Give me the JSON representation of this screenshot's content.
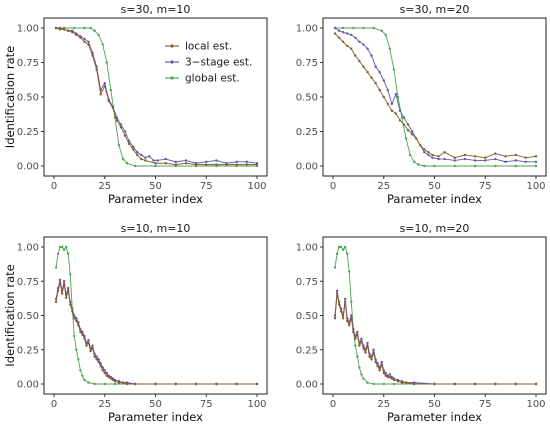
{
  "figure": {
    "xlabel": "Parameter index",
    "ylabel": "Identification rate"
  },
  "legend": {
    "placement": "top-right of first panel",
    "entries": [
      {
        "label": "local est.",
        "color": "#8B5A2B"
      },
      {
        "label": "3−stage est.",
        "color": "#5A5AA8"
      },
      {
        "label": "global est.",
        "color": "#4CA64C"
      }
    ]
  },
  "chart_data": [
    {
      "type": "line",
      "title": "s=30, m=10",
      "xlim": [
        0,
        100
      ],
      "ylim": [
        0,
        1
      ],
      "xticks": [
        "0",
        "25",
        "50",
        "75",
        "100"
      ],
      "yticks": [
        "0.00",
        "0.25",
        "0.50",
        "0.75",
        "1.00"
      ],
      "series": [
        {
          "name": "global est.",
          "color": "#4CA64C",
          "x": [
            1,
            5,
            10,
            15,
            18,
            20,
            22,
            24,
            26,
            28,
            30,
            32,
            34,
            36,
            40,
            50,
            60,
            70,
            80,
            90,
            100
          ],
          "y": [
            1,
            1,
            1,
            1,
            1,
            0.98,
            0.95,
            0.88,
            0.75,
            0.55,
            0.35,
            0.15,
            0.05,
            0.02,
            0,
            0,
            0,
            0,
            0,
            0,
            0
          ]
        },
        {
          "name": "3−stage est.",
          "color": "#5A5AA8",
          "x": [
            1,
            3,
            5,
            7,
            9,
            11,
            13,
            15,
            17,
            19,
            21,
            23,
            25,
            27,
            29,
            31,
            33,
            35,
            37,
            39,
            41,
            43,
            45,
            47,
            49,
            51,
            55,
            60,
            65,
            70,
            75,
            80,
            85,
            90,
            95,
            100
          ],
          "y": [
            1,
            1,
            0.99,
            0.98,
            0.98,
            0.96,
            0.94,
            0.92,
            0.9,
            0.82,
            0.72,
            0.55,
            0.6,
            0.48,
            0.43,
            0.35,
            0.3,
            0.25,
            0.18,
            0.14,
            0.1,
            0.08,
            0.06,
            0.07,
            0.04,
            0.04,
            0.05,
            0.03,
            0.04,
            0.02,
            0.03,
            0.04,
            0.02,
            0.03,
            0.03,
            0.02
          ]
        },
        {
          "name": "local est.",
          "color": "#8B5A2B",
          "x": [
            1,
            3,
            5,
            7,
            9,
            11,
            13,
            15,
            17,
            19,
            21,
            23,
            25,
            27,
            29,
            31,
            33,
            35,
            37,
            39,
            41,
            43,
            45,
            50,
            55,
            60,
            65,
            70,
            75,
            80,
            85,
            90,
            95,
            100
          ],
          "y": [
            1,
            0.99,
            0.99,
            0.98,
            0.97,
            0.95,
            0.93,
            0.9,
            0.88,
            0.8,
            0.7,
            0.52,
            0.58,
            0.47,
            0.42,
            0.33,
            0.28,
            0.22,
            0.16,
            0.12,
            0.08,
            0.05,
            0.04,
            0.02,
            0.02,
            0.01,
            0.02,
            0.01,
            0.01,
            0.01,
            0.01,
            0.01,
            0.01,
            0.01
          ]
        }
      ]
    },
    {
      "type": "line",
      "title": "s=30, m=20",
      "xlim": [
        0,
        100
      ],
      "ylim": [
        0,
        1
      ],
      "xticks": [
        "0",
        "25",
        "50",
        "75",
        "100"
      ],
      "yticks": [
        "0.00",
        "0.25",
        "0.50",
        "0.75",
        "1.00"
      ],
      "series": [
        {
          "name": "global est.",
          "color": "#4CA64C",
          "x": [
            1,
            5,
            10,
            15,
            20,
            24,
            26,
            28,
            30,
            32,
            34,
            36,
            38,
            40,
            42,
            45,
            50,
            60,
            70,
            80,
            90,
            100
          ],
          "y": [
            1,
            1,
            1,
            1,
            1,
            0.98,
            0.95,
            0.85,
            0.7,
            0.5,
            0.35,
            0.2,
            0.08,
            0.03,
            0.01,
            0,
            0,
            0,
            0,
            0,
            0,
            0
          ]
        },
        {
          "name": "3−stage est.",
          "color": "#5A5AA8",
          "x": [
            1,
            3,
            5,
            7,
            9,
            11,
            13,
            15,
            17,
            19,
            21,
            23,
            25,
            27,
            29,
            31,
            33,
            35,
            37,
            39,
            41,
            43,
            45,
            47,
            49,
            52,
            55,
            60,
            65,
            70,
            75,
            80,
            85,
            90,
            95,
            100
          ],
          "y": [
            1,
            0.98,
            0.97,
            0.96,
            0.95,
            0.93,
            0.9,
            0.88,
            0.85,
            0.8,
            0.72,
            0.68,
            0.62,
            0.55,
            0.45,
            0.52,
            0.4,
            0.35,
            0.3,
            0.25,
            0.2,
            0.15,
            0.1,
            0.08,
            0.06,
            0.05,
            0.05,
            0.04,
            0.05,
            0.04,
            0.04,
            0.05,
            0.03,
            0.04,
            0.03,
            0.03
          ]
        },
        {
          "name": "local est.",
          "color": "#8B5A2B",
          "x": [
            1,
            3,
            5,
            7,
            9,
            11,
            13,
            15,
            17,
            19,
            21,
            23,
            25,
            27,
            29,
            31,
            33,
            35,
            37,
            39,
            41,
            43,
            45,
            47,
            49,
            52,
            55,
            60,
            65,
            70,
            75,
            80,
            85,
            90,
            95,
            100
          ],
          "y": [
            0.96,
            0.93,
            0.9,
            0.87,
            0.85,
            0.8,
            0.76,
            0.72,
            0.68,
            0.64,
            0.6,
            0.55,
            0.5,
            0.45,
            0.4,
            0.38,
            0.33,
            0.3,
            0.26,
            0.23,
            0.2,
            0.15,
            0.12,
            0.1,
            0.08,
            0.07,
            0.1,
            0.06,
            0.08,
            0.07,
            0.06,
            0.09,
            0.07,
            0.08,
            0.06,
            0.07
          ]
        }
      ]
    },
    {
      "type": "line",
      "title": "s=10, m=10",
      "xlim": [
        0,
        100
      ],
      "ylim": [
        0,
        1
      ],
      "xticks": [
        "0",
        "25",
        "50",
        "75",
        "100"
      ],
      "yticks": [
        "0.00",
        "0.25",
        "0.50",
        "0.75",
        "1.00"
      ],
      "series": [
        {
          "name": "global est.",
          "color": "#4CA64C",
          "x": [
            1,
            2,
            3,
            4,
            5,
            6,
            7,
            8,
            9,
            10,
            11,
            12,
            13,
            14,
            15,
            17,
            20,
            25,
            30,
            40,
            50,
            60,
            70,
            80,
            90,
            100
          ],
          "y": [
            0.85,
            0.95,
            1.0,
            1.0,
            0.98,
            1.0,
            0.95,
            0.8,
            0.55,
            0.35,
            0.25,
            0.18,
            0.1,
            0.06,
            0.03,
            0.01,
            0,
            0,
            0,
            0,
            0,
            0,
            0,
            0,
            0,
            0
          ]
        },
        {
          "name": "3−stage est.",
          "color": "#5A5AA8",
          "x": [
            1,
            2,
            3,
            4,
            5,
            6,
            7,
            8,
            9,
            10,
            11,
            12,
            13,
            14,
            15,
            16,
            17,
            18,
            19,
            20,
            21,
            22,
            23,
            24,
            25,
            26,
            27,
            28,
            29,
            30,
            32,
            34,
            36,
            40,
            50,
            60,
            70,
            80,
            90,
            100
          ],
          "y": [
            0.62,
            0.7,
            0.76,
            0.68,
            0.75,
            0.65,
            0.7,
            0.6,
            0.55,
            0.5,
            0.48,
            0.45,
            0.4,
            0.38,
            0.35,
            0.3,
            0.32,
            0.26,
            0.28,
            0.22,
            0.2,
            0.18,
            0.15,
            0.12,
            0.1,
            0.08,
            0.06,
            0.05,
            0.04,
            0.03,
            0.02,
            0.01,
            0.01,
            0,
            0,
            0,
            0,
            0,
            0,
            0
          ]
        },
        {
          "name": "local est.",
          "color": "#8B5A2B",
          "x": [
            1,
            2,
            3,
            4,
            5,
            6,
            7,
            8,
            9,
            10,
            11,
            12,
            13,
            14,
            15,
            16,
            17,
            18,
            19,
            20,
            21,
            22,
            23,
            24,
            25,
            26,
            27,
            28,
            29,
            30,
            32,
            34,
            36,
            40,
            50,
            60,
            70,
            80,
            90,
            100
          ],
          "y": [
            0.6,
            0.68,
            0.74,
            0.66,
            0.73,
            0.63,
            0.68,
            0.58,
            0.53,
            0.48,
            0.46,
            0.43,
            0.38,
            0.36,
            0.33,
            0.28,
            0.3,
            0.24,
            0.26,
            0.2,
            0.18,
            0.16,
            0.13,
            0.1,
            0.08,
            0.06,
            0.05,
            0.04,
            0.03,
            0.02,
            0.01,
            0.01,
            0,
            0,
            0,
            0,
            0,
            0,
            0,
            0
          ]
        }
      ]
    },
    {
      "type": "line",
      "title": "s=10, m=20",
      "xlim": [
        0,
        100
      ],
      "ylim": [
        0,
        1
      ],
      "xticks": [
        "0",
        "25",
        "50",
        "75",
        "100"
      ],
      "yticks": [
        "0.00",
        "0.25",
        "0.50",
        "0.75",
        "1.00"
      ],
      "series": [
        {
          "name": "global est.",
          "color": "#4CA64C",
          "x": [
            1,
            2,
            3,
            4,
            5,
            6,
            7,
            8,
            9,
            10,
            11,
            12,
            13,
            14,
            15,
            17,
            20,
            25,
            30,
            40,
            50,
            60,
            70,
            80,
            90,
            100
          ],
          "y": [
            0.85,
            0.95,
            1.0,
            1.0,
            0.98,
            1.0,
            0.95,
            0.82,
            0.6,
            0.4,
            0.28,
            0.2,
            0.12,
            0.07,
            0.04,
            0.01,
            0,
            0,
            0,
            0,
            0,
            0,
            0,
            0,
            0,
            0
          ]
        },
        {
          "name": "3−stage est.",
          "color": "#5A5AA8",
          "x": [
            1,
            2,
            3,
            4,
            5,
            6,
            7,
            8,
            9,
            10,
            11,
            12,
            13,
            14,
            15,
            16,
            17,
            18,
            19,
            20,
            21,
            22,
            23,
            24,
            25,
            26,
            27,
            28,
            29,
            30,
            32,
            34,
            36,
            40,
            50,
            60,
            70,
            80,
            90,
            100
          ],
          "y": [
            0.5,
            0.68,
            0.6,
            0.55,
            0.5,
            0.62,
            0.48,
            0.45,
            0.5,
            0.4,
            0.35,
            0.38,
            0.3,
            0.33,
            0.28,
            0.25,
            0.3,
            0.22,
            0.2,
            0.25,
            0.18,
            0.15,
            0.12,
            0.16,
            0.1,
            0.08,
            0.06,
            0.07,
            0.05,
            0.04,
            0.03,
            0.02,
            0.01,
            0.01,
            0,
            0,
            0,
            0,
            0,
            0
          ]
        },
        {
          "name": "local est.",
          "color": "#8B5A2B",
          "x": [
            1,
            2,
            3,
            4,
            5,
            6,
            7,
            8,
            9,
            10,
            11,
            12,
            13,
            14,
            15,
            16,
            17,
            18,
            19,
            20,
            21,
            22,
            23,
            24,
            25,
            26,
            27,
            28,
            29,
            30,
            32,
            34,
            36,
            40,
            50,
            60,
            70,
            80,
            90,
            100
          ],
          "y": [
            0.48,
            0.66,
            0.58,
            0.53,
            0.48,
            0.6,
            0.46,
            0.43,
            0.48,
            0.38,
            0.33,
            0.36,
            0.28,
            0.31,
            0.26,
            0.23,
            0.28,
            0.2,
            0.18,
            0.23,
            0.16,
            0.13,
            0.1,
            0.14,
            0.08,
            0.06,
            0.05,
            0.05,
            0.04,
            0.03,
            0.02,
            0.01,
            0.01,
            0,
            0,
            0,
            0,
            0,
            0,
            0
          ]
        }
      ]
    }
  ]
}
